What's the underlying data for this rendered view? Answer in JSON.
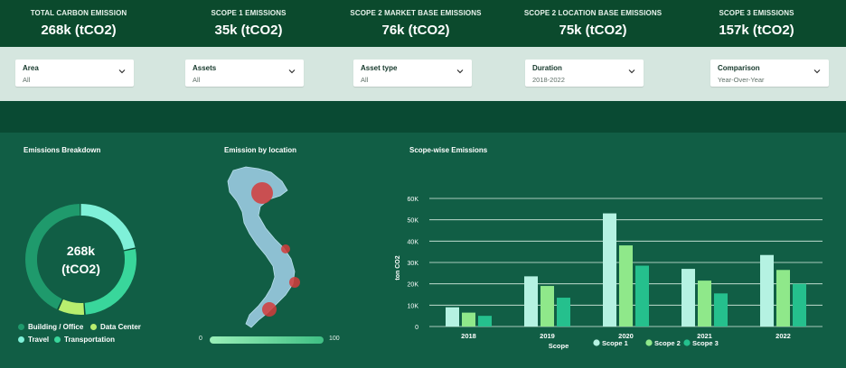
{
  "kpis": [
    {
      "label": "TOTAL CARBON EMISSION",
      "value": "268k (tCO2)"
    },
    {
      "label": "SCOPE 1 EMISSIONS",
      "value": "35k (tCO2)"
    },
    {
      "label": "SCOPE 2 MARKET BASE EMISSIONS",
      "value": "76k (tCO2)"
    },
    {
      "label": "SCOPE 2 LOCATION BASE EMISSIONS",
      "value": "75k (tCO2)"
    },
    {
      "label": "SCOPE 3 EMISSIONS",
      "value": "157k (tCO2)"
    }
  ],
  "filters": [
    {
      "label": "Area",
      "value": "All"
    },
    {
      "label": "Assets",
      "value": "All"
    },
    {
      "label": "Asset type",
      "value": "All"
    },
    {
      "label": "Duration",
      "value": "2018-2022"
    },
    {
      "label": "Comparison",
      "value": "Year-Over-Year"
    }
  ],
  "breakdown": {
    "title": "Emissions Breakdown",
    "center_line1": "268k",
    "center_line2": "(tCO2)",
    "segments": [
      {
        "name": "Building / Office",
        "share": 0.43,
        "color": "#1f9a6c"
      },
      {
        "name": "Data Center",
        "share": 0.08,
        "color": "#b8ee6e"
      },
      {
        "name": "Travel",
        "share": 0.22,
        "color": "#7ff0d8"
      },
      {
        "name": "Transportation",
        "share": 0.27,
        "color": "#39d69b"
      }
    ]
  },
  "location": {
    "title": "Emission by location",
    "scale_min": "0",
    "scale_max": "100"
  },
  "scope": {
    "title": "Scope-wise Emissions"
  },
  "chart_data": {
    "type": "bar",
    "title": "Scope-wise Emissions",
    "xlabel": "Scope",
    "ylabel": "ton CO2",
    "categories": [
      "2018",
      "2019",
      "2020",
      "2021",
      "2022"
    ],
    "ylim": [
      0,
      60000
    ],
    "yticks": [
      "0",
      "10K",
      "20K",
      "30K",
      "40K",
      "50K",
      "60K"
    ],
    "grid": true,
    "legend_position": "bottom",
    "series": [
      {
        "name": "Scope 1",
        "color": "#b5f2e2",
        "values": [
          9000,
          23500,
          53000,
          27000,
          33500
        ]
      },
      {
        "name": "Scope 2",
        "color": "#8fe88a",
        "values": [
          6500,
          19000,
          38000,
          21500,
          26500
        ]
      },
      {
        "name": "Scope 3",
        "color": "#25c08d",
        "values": [
          5000,
          13500,
          28500,
          15500,
          20000
        ]
      }
    ]
  }
}
